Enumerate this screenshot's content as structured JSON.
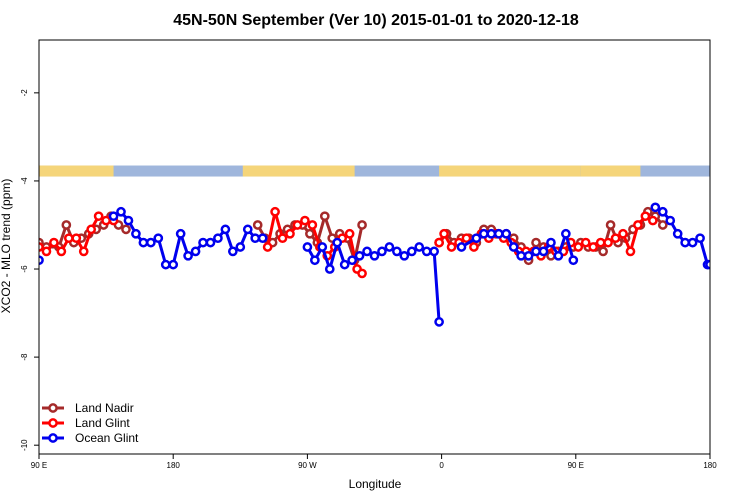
{
  "chart_data": {
    "type": "line",
    "title": "45N-50N September (Ver 10)   2015-01-01 to 2020-12-18",
    "xlabel": "Longitude",
    "ylabel": "XCO2 - MLO trend (ppm)",
    "xlim": [
      -90,
      180
    ],
    "ylim": [
      -10.2,
      -0.8
    ],
    "x_ticks": [
      {
        "value": -90,
        "label": "90 E"
      },
      {
        "value": -36,
        "label": "180"
      },
      {
        "value": 18,
        "label": "90 W"
      },
      {
        "value": 72,
        "label": "0"
      },
      {
        "value": 126,
        "label": "90 E"
      },
      {
        "value": 180,
        "label": "180"
      }
    ],
    "y_ticks": [
      {
        "value": -2,
        "label": "-2"
      },
      {
        "value": -4,
        "label": "-4"
      },
      {
        "value": -6,
        "label": "-6"
      },
      {
        "value": -8,
        "label": "-8"
      },
      {
        "value": -10,
        "label": "-10"
      }
    ],
    "legend_position": "bottom-left",
    "map_strip": {
      "y_top": -3.65,
      "y_bottom": -3.9,
      "land_color": "#f5d57a",
      "ocean_color": "#9fb6dc"
    },
    "series": [
      {
        "name": "Land Nadir",
        "color": "#a52a2a",
        "segments": [
          [
            [
              -90,
              -5.4
            ],
            [
              -87,
              -5.5
            ],
            [
              -82,
              -5.5
            ],
            [
              -79,
              -5.0
            ],
            [
              -76,
              -5.4
            ],
            [
              -73,
              -5.3
            ],
            [
              -70,
              -5.2
            ],
            [
              -67,
              -5.1
            ],
            [
              -64,
              -5.0
            ],
            [
              -61,
              -4.8
            ],
            [
              -58,
              -5.0
            ],
            [
              -55,
              -5.1
            ]
          ],
          [
            [
              -2,
              -5.0
            ],
            [
              1,
              -5.3
            ],
            [
              4,
              -5.4
            ],
            [
              7,
              -5.2
            ],
            [
              10,
              -5.1
            ],
            [
              13,
              -5.0
            ],
            [
              16,
              -5.0
            ],
            [
              19,
              -5.2
            ],
            [
              22,
              -5.4
            ],
            [
              25,
              -4.8
            ],
            [
              28,
              -5.3
            ],
            [
              31,
              -5.2
            ],
            [
              34,
              -5.3
            ],
            [
              37,
              -5.8
            ],
            [
              40,
              -5.0
            ]
          ],
          [
            [
              71,
              -5.4
            ],
            [
              74,
              -5.2
            ],
            [
              77,
              -5.4
            ],
            [
              80,
              -5.3
            ],
            [
              83,
              -5.3
            ],
            [
              86,
              -5.4
            ],
            [
              89,
              -5.1
            ],
            [
              92,
              -5.1
            ],
            [
              95,
              -5.2
            ],
            [
              98,
              -5.2
            ],
            [
              101,
              -5.3
            ],
            [
              104,
              -5.5
            ],
            [
              107,
              -5.8
            ],
            [
              110,
              -5.4
            ],
            [
              113,
              -5.5
            ],
            [
              116,
              -5.7
            ],
            [
              119,
              -5.6
            ],
            [
              122,
              -5.5
            ],
            [
              125,
              -5.5
            ],
            [
              128,
              -5.4
            ],
            [
              131,
              -5.5
            ],
            [
              134,
              -5.5
            ],
            [
              137,
              -5.6
            ],
            [
              140,
              -5.0
            ],
            [
              143,
              -5.4
            ],
            [
              146,
              -5.3
            ],
            [
              149,
              -5.1
            ],
            [
              152,
              -5.0
            ],
            [
              155,
              -4.7
            ],
            [
              158,
              -4.8
            ],
            [
              161,
              -5.0
            ]
          ]
        ]
      },
      {
        "name": "Land Glint",
        "color": "#ff0000",
        "segments": [
          [
            [
              -90,
              -5.5
            ],
            [
              -87,
              -5.6
            ],
            [
              -84,
              -5.4
            ],
            [
              -81,
              -5.6
            ],
            [
              -78,
              -5.3
            ],
            [
              -75,
              -5.3
            ],
            [
              -72,
              -5.6
            ],
            [
              -69,
              -5.1
            ],
            [
              -66,
              -4.8
            ],
            [
              -63,
              -4.9
            ],
            [
              -60,
              -4.9
            ]
          ],
          [
            [
              2,
              -5.5
            ],
            [
              5,
              -4.7
            ],
            [
              8,
              -5.3
            ],
            [
              11,
              -5.2
            ],
            [
              14,
              -5.0
            ],
            [
              17,
              -4.9
            ],
            [
              20,
              -5.0
            ],
            [
              23,
              -5.5
            ],
            [
              26,
              -5.7
            ],
            [
              29,
              -5.5
            ],
            [
              32,
              -5.3
            ],
            [
              35,
              -5.2
            ],
            [
              38,
              -6.0
            ],
            [
              40,
              -6.1
            ]
          ],
          [
            [
              71,
              -5.4
            ],
            [
              73,
              -5.2
            ],
            [
              76,
              -5.5
            ],
            [
              79,
              -5.4
            ],
            [
              82,
              -5.3
            ],
            [
              85,
              -5.5
            ],
            [
              88,
              -5.2
            ],
            [
              91,
              -5.3
            ],
            [
              94,
              -5.2
            ],
            [
              97,
              -5.3
            ],
            [
              100,
              -5.4
            ],
            [
              103,
              -5.6
            ],
            [
              106,
              -5.6
            ],
            [
              109,
              -5.6
            ],
            [
              112,
              -5.7
            ],
            [
              115,
              -5.5
            ],
            [
              118,
              -5.6
            ],
            [
              121,
              -5.6
            ],
            [
              124,
              -5.4
            ],
            [
              127,
              -5.5
            ],
            [
              130,
              -5.4
            ],
            [
              133,
              -5.5
            ],
            [
              136,
              -5.4
            ],
            [
              139,
              -5.4
            ],
            [
              142,
              -5.3
            ],
            [
              145,
              -5.2
            ],
            [
              148,
              -5.6
            ],
            [
              151,
              -5.0
            ],
            [
              154,
              -4.8
            ],
            [
              157,
              -4.9
            ]
          ]
        ]
      },
      {
        "name": "Ocean Glint",
        "color": "#0000ee",
        "segments": [
          [
            [
              -90,
              -5.8
            ]
          ],
          [
            [
              -60,
              -4.8
            ],
            [
              -57,
              -4.7
            ],
            [
              -54,
              -4.9
            ],
            [
              -51,
              -5.2
            ],
            [
              -48,
              -5.4
            ],
            [
              -45,
              -5.4
            ],
            [
              -42,
              -5.3
            ],
            [
              -39,
              -5.9
            ],
            [
              -36,
              -5.9
            ],
            [
              -33,
              -5.2
            ],
            [
              -30,
              -5.7
            ],
            [
              -27,
              -5.6
            ],
            [
              -24,
              -5.4
            ],
            [
              -21,
              -5.4
            ],
            [
              -18,
              -5.3
            ],
            [
              -15,
              -5.1
            ],
            [
              -12,
              -5.6
            ],
            [
              -9,
              -5.5
            ],
            [
              -6,
              -5.1
            ],
            [
              -3,
              -5.3
            ],
            [
              0,
              -5.3
            ]
          ],
          [
            [
              18,
              -5.5
            ],
            [
              21,
              -5.8
            ],
            [
              24,
              -5.5
            ],
            [
              27,
              -6.0
            ],
            [
              30,
              -5.4
            ],
            [
              33,
              -5.9
            ],
            [
              36,
              -5.8
            ],
            [
              39,
              -5.7
            ],
            [
              42,
              -5.6
            ],
            [
              45,
              -5.7
            ],
            [
              48,
              -5.6
            ],
            [
              51,
              -5.5
            ],
            [
              54,
              -5.6
            ],
            [
              57,
              -5.7
            ],
            [
              60,
              -5.6
            ],
            [
              63,
              -5.5
            ],
            [
              66,
              -5.6
            ],
            [
              69,
              -5.6
            ],
            [
              71,
              -7.2
            ]
          ],
          [
            [
              80,
              -5.5
            ],
            [
              86,
              -5.3
            ],
            [
              89,
              -5.2
            ],
            [
              92,
              -5.2
            ],
            [
              95,
              -5.2
            ],
            [
              98,
              -5.2
            ],
            [
              101,
              -5.5
            ],
            [
              104,
              -5.7
            ],
            [
              107,
              -5.7
            ],
            [
              110,
              -5.6
            ],
            [
              113,
              -5.6
            ],
            [
              116,
              -5.4
            ],
            [
              119,
              -5.7
            ],
            [
              122,
              -5.2
            ],
            [
              125,
              -5.8
            ]
          ],
          [
            [
              158,
              -4.6
            ],
            [
              161,
              -4.7
            ],
            [
              164,
              -4.9
            ],
            [
              167,
              -5.2
            ],
            [
              170,
              -5.4
            ],
            [
              173,
              -5.4
            ],
            [
              176,
              -5.3
            ],
            [
              179,
              -5.9
            ],
            [
              180,
              -5.9
            ]
          ]
        ]
      }
    ]
  }
}
